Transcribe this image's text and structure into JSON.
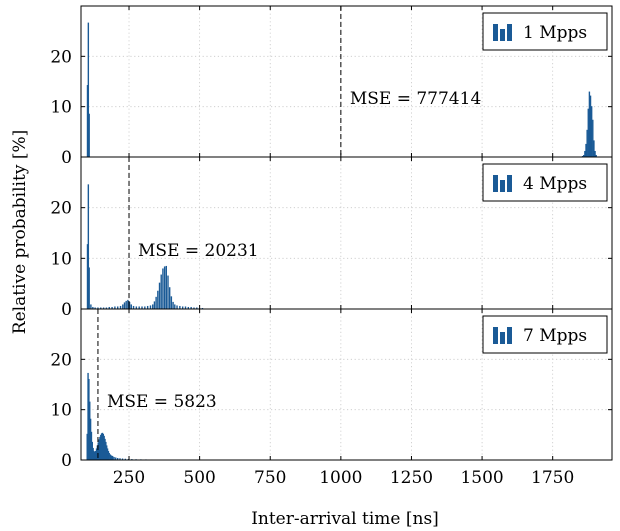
{
  "chart_data": {
    "type": "bar",
    "xlabel": "Inter-arrival time [ns]",
    "ylabel": "Relative probability [%]",
    "xlim": [
      80,
      1960
    ],
    "x_ticks": [
      250,
      500,
      750,
      1000,
      1250,
      1500,
      1750
    ],
    "x_tick_labels": [
      "250",
      "500",
      "750",
      "1000",
      "1250",
      "1500",
      "1750"
    ],
    "ylim": [
      0,
      30
    ],
    "y_ticks": [
      0,
      10,
      20
    ],
    "y_tick_labels": [
      "0",
      "10",
      "20"
    ],
    "grid": true,
    "legend_position": "top-right",
    "bar_color": "#1a5a96",
    "panels": [
      {
        "legend": "1 Mpps",
        "mse_x": 1000,
        "annotation": "MSE = 777414",
        "points": [
          {
            "x": 103,
            "y": 14.3
          },
          {
            "x": 106,
            "y": 26.7
          },
          {
            "x": 109,
            "y": 8.6
          },
          {
            "x": 1856,
            "y": 0.2
          },
          {
            "x": 1860,
            "y": 0.4
          },
          {
            "x": 1864,
            "y": 1.2
          },
          {
            "x": 1868,
            "y": 2.6
          },
          {
            "x": 1872,
            "y": 5.4
          },
          {
            "x": 1876,
            "y": 9.6
          },
          {
            "x": 1880,
            "y": 13.0
          },
          {
            "x": 1884,
            "y": 12.2
          },
          {
            "x": 1888,
            "y": 10.1
          },
          {
            "x": 1892,
            "y": 7.4
          },
          {
            "x": 1896,
            "y": 3.3
          },
          {
            "x": 1900,
            "y": 1.2
          },
          {
            "x": 1904,
            "y": 0.4
          }
        ]
      },
      {
        "legend": "4 Mpps",
        "mse_x": 250,
        "annotation": "MSE = 20231",
        "points": [
          {
            "x": 103,
            "y": 12.8
          },
          {
            "x": 106,
            "y": 24.6
          },
          {
            "x": 109,
            "y": 8.2
          },
          {
            "x": 115,
            "y": 0.9
          },
          {
            "x": 122,
            "y": 0.4
          },
          {
            "x": 130,
            "y": 0.3
          },
          {
            "x": 140,
            "y": 0.3
          },
          {
            "x": 150,
            "y": 0.3
          },
          {
            "x": 160,
            "y": 0.3
          },
          {
            "x": 170,
            "y": 0.3
          },
          {
            "x": 180,
            "y": 0.4
          },
          {
            "x": 190,
            "y": 0.4
          },
          {
            "x": 200,
            "y": 0.5
          },
          {
            "x": 210,
            "y": 0.5
          },
          {
            "x": 220,
            "y": 0.6
          },
          {
            "x": 228,
            "y": 0.9
          },
          {
            "x": 234,
            "y": 1.3
          },
          {
            "x": 240,
            "y": 1.6
          },
          {
            "x": 246,
            "y": 1.8
          },
          {
            "x": 252,
            "y": 1.4
          },
          {
            "x": 258,
            "y": 0.9
          },
          {
            "x": 266,
            "y": 0.6
          },
          {
            "x": 276,
            "y": 0.5
          },
          {
            "x": 286,
            "y": 0.5
          },
          {
            "x": 296,
            "y": 0.5
          },
          {
            "x": 306,
            "y": 0.5
          },
          {
            "x": 316,
            "y": 0.6
          },
          {
            "x": 326,
            "y": 0.7
          },
          {
            "x": 334,
            "y": 0.9
          },
          {
            "x": 340,
            "y": 1.5
          },
          {
            "x": 346,
            "y": 2.4
          },
          {
            "x": 352,
            "y": 3.6
          },
          {
            "x": 358,
            "y": 5.2
          },
          {
            "x": 364,
            "y": 6.8
          },
          {
            "x": 370,
            "y": 8.0
          },
          {
            "x": 376,
            "y": 8.4
          },
          {
            "x": 382,
            "y": 8.5
          },
          {
            "x": 388,
            "y": 6.6
          },
          {
            "x": 394,
            "y": 4.3
          },
          {
            "x": 400,
            "y": 2.5
          },
          {
            "x": 406,
            "y": 1.4
          },
          {
            "x": 412,
            "y": 0.9
          },
          {
            "x": 420,
            "y": 0.7
          },
          {
            "x": 430,
            "y": 0.6
          },
          {
            "x": 440,
            "y": 0.5
          },
          {
            "x": 450,
            "y": 0.5
          },
          {
            "x": 460,
            "y": 0.4
          },
          {
            "x": 470,
            "y": 0.4
          },
          {
            "x": 480,
            "y": 0.3
          },
          {
            "x": 490,
            "y": 0.3
          },
          {
            "x": 500,
            "y": 0.2
          },
          {
            "x": 510,
            "y": 0.2
          },
          {
            "x": 520,
            "y": 0.1
          }
        ]
      },
      {
        "legend": "7 Mpps",
        "mse_x": 140,
        "annotation": "MSE = 5823",
        "points": [
          {
            "x": 102,
            "y": 5.2
          },
          {
            "x": 105,
            "y": 17.3
          },
          {
            "x": 108,
            "y": 16.1
          },
          {
            "x": 111,
            "y": 11.6
          },
          {
            "x": 114,
            "y": 8.2
          },
          {
            "x": 117,
            "y": 5.6
          },
          {
            "x": 120,
            "y": 3.6
          },
          {
            "x": 123,
            "y": 2.4
          },
          {
            "x": 126,
            "y": 1.8
          },
          {
            "x": 129,
            "y": 1.6
          },
          {
            "x": 132,
            "y": 1.8
          },
          {
            "x": 135,
            "y": 2.3
          },
          {
            "x": 138,
            "y": 2.9
          },
          {
            "x": 141,
            "y": 3.5
          },
          {
            "x": 144,
            "y": 4.1
          },
          {
            "x": 147,
            "y": 4.6
          },
          {
            "x": 150,
            "y": 5.0
          },
          {
            "x": 153,
            "y": 5.3
          },
          {
            "x": 156,
            "y": 5.4
          },
          {
            "x": 159,
            "y": 5.2
          },
          {
            "x": 162,
            "y": 4.8
          },
          {
            "x": 165,
            "y": 4.2
          },
          {
            "x": 168,
            "y": 3.6
          },
          {
            "x": 171,
            "y": 2.9
          },
          {
            "x": 174,
            "y": 2.3
          },
          {
            "x": 177,
            "y": 1.8
          },
          {
            "x": 180,
            "y": 1.4
          },
          {
            "x": 184,
            "y": 1.1
          },
          {
            "x": 188,
            "y": 0.9
          },
          {
            "x": 192,
            "y": 0.8
          },
          {
            "x": 197,
            "y": 0.6
          },
          {
            "x": 203,
            "y": 0.5
          },
          {
            "x": 210,
            "y": 0.4
          },
          {
            "x": 218,
            "y": 0.35
          },
          {
            "x": 227,
            "y": 0.3
          },
          {
            "x": 237,
            "y": 0.25
          },
          {
            "x": 248,
            "y": 0.2
          },
          {
            "x": 260,
            "y": 0.18
          },
          {
            "x": 275,
            "y": 0.15
          },
          {
            "x": 292,
            "y": 0.13
          },
          {
            "x": 310,
            "y": 0.12
          },
          {
            "x": 330,
            "y": 0.1
          },
          {
            "x": 352,
            "y": 0.09
          },
          {
            "x": 376,
            "y": 0.08
          },
          {
            "x": 402,
            "y": 0.07
          },
          {
            "x": 430,
            "y": 0.06
          },
          {
            "x": 460,
            "y": 0.05
          },
          {
            "x": 500,
            "y": 0.04
          },
          {
            "x": 540,
            "y": 0.03
          },
          {
            "x": 590,
            "y": 0.03
          },
          {
            "x": 640,
            "y": 0.02
          },
          {
            "x": 700,
            "y": 0.02
          }
        ]
      }
    ]
  }
}
